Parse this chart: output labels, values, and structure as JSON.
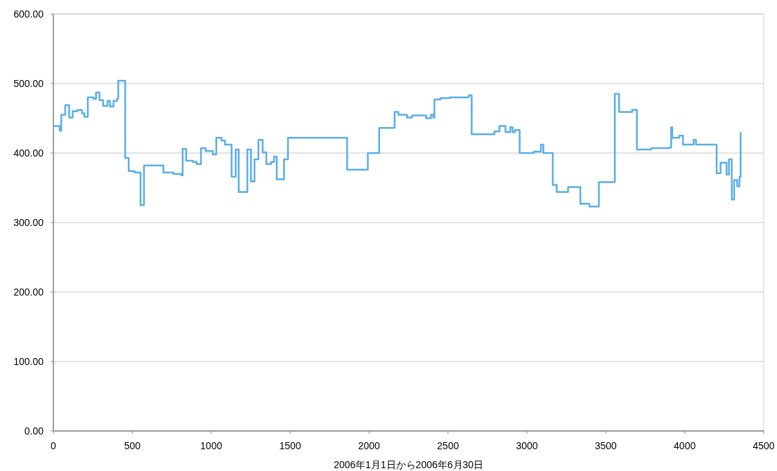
{
  "chart_data": {
    "type": "step",
    "xlabel": "2006年1月1日から2006年6月30日",
    "xlim": [
      0,
      4500
    ],
    "xticks": [
      0,
      500,
      1000,
      1500,
      2000,
      2500,
      3000,
      3500,
      4000,
      4500
    ],
    "ylim": [
      0,
      600
    ],
    "yticks": [
      {
        "value": 0,
        "label": "0.00"
      },
      {
        "value": 100,
        "label": "100.00"
      },
      {
        "value": 200,
        "label": "200.00"
      },
      {
        "value": 300,
        "label": "300.00"
      },
      {
        "value": 400,
        "label": "400.00"
      },
      {
        "value": 500,
        "label": "500.00"
      },
      {
        "value": 600,
        "label": "600.00"
      }
    ],
    "grid": "y",
    "series": [
      {
        "color": "#5aaee8",
        "x": [
          3,
          40,
          50,
          75,
          100,
          122,
          152,
          181,
          196,
          218,
          254,
          270,
          292,
          315,
          343,
          359,
          381,
          403,
          411,
          455,
          477,
          515,
          552,
          574,
          697,
          760,
          811,
          819,
          841,
          885,
          908,
          935,
          965,
          1010,
          1032,
          1065,
          1087,
          1129,
          1155,
          1174,
          1229,
          1252,
          1274,
          1299,
          1326,
          1349,
          1379,
          1398,
          1415,
          1461,
          1486,
          1861,
          1992,
          2064,
          2162,
          2186,
          2240,
          2272,
          2362,
          2392,
          2407,
          2414,
          2452,
          2512,
          2632,
          2650,
          2794,
          2826,
          2864,
          2894,
          2909,
          2924,
          2954,
          3044,
          3089,
          3104,
          3164,
          3189,
          3261,
          3339,
          3396,
          3456,
          3557,
          3584,
          3667,
          3697,
          3787,
          3906,
          3914,
          3921,
          3966,
          3989,
          4056,
          4071,
          4198,
          4202,
          4227,
          4265,
          4280,
          4298,
          4313,
          4332,
          4347,
          4354
        ],
        "values": [
          439,
          432,
          455,
          469,
          451,
          460,
          462,
          457,
          452,
          480,
          478,
          487,
          476,
          468,
          475,
          467,
          475,
          478,
          504,
          393,
          374,
          372,
          325,
          382,
          372,
          370,
          368,
          406,
          389,
          387,
          384,
          407,
          403,
          398,
          422,
          418,
          412,
          366,
          405,
          344,
          405,
          359,
          391,
          419,
          401,
          384,
          387,
          395,
          362,
          391,
          422,
          376,
          400,
          436,
          459,
          455,
          451,
          454,
          450,
          455,
          451,
          477,
          479,
          480,
          483,
          427,
          431,
          439,
          430,
          437,
          430,
          433,
          400,
          402,
          412,
          400,
          354,
          344,
          351,
          327,
          323,
          358,
          485,
          459,
          462,
          405,
          407,
          408,
          437,
          422,
          425,
          412,
          419,
          412,
          412,
          371,
          386,
          369,
          391,
          333,
          361,
          352,
          366,
          429
        ]
      }
    ]
  }
}
